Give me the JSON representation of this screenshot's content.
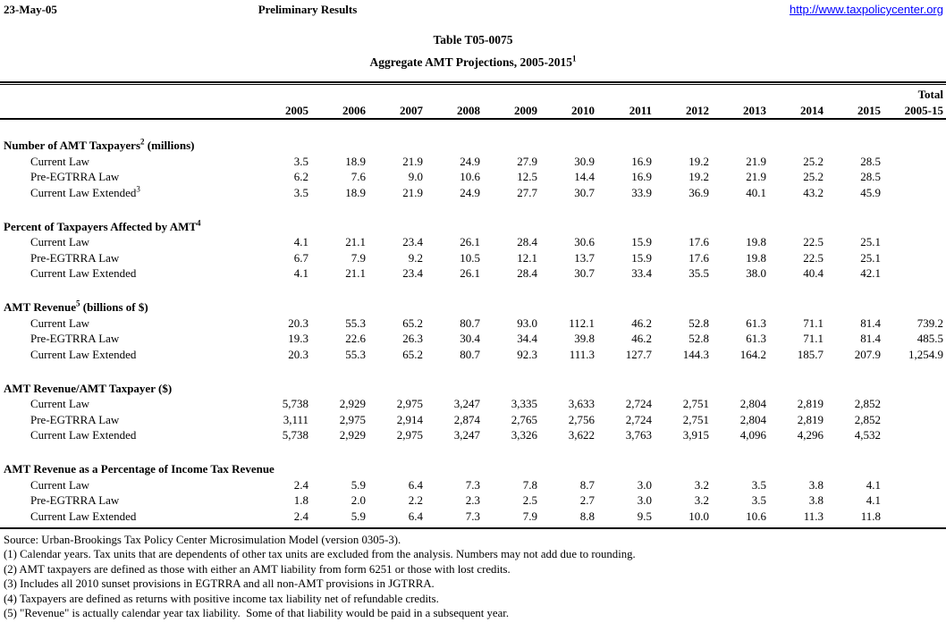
{
  "page_header": {
    "date": "23-May-05",
    "status": "Preliminary Results",
    "link": "http://www.taxpolicycenter.org",
    "link_color": "#0000ff"
  },
  "title": "Table T05-0075",
  "subtitle": {
    "text": "Aggregate AMT Projections, 2005-2015",
    "sup": "1"
  },
  "table": {
    "years": [
      "2005",
      "2006",
      "2007",
      "2008",
      "2009",
      "2010",
      "2011",
      "2012",
      "2013",
      "2014",
      "2015"
    ],
    "total_header": {
      "line1": "Total",
      "line2": "2005-15"
    },
    "sections": [
      {
        "title": "Number of AMT Taxpayers",
        "sup": "2",
        "suffix": " (millions)",
        "rows": [
          {
            "label": "Current Law",
            "sup": "",
            "values": [
              "3.5",
              "18.9",
              "21.9",
              "24.9",
              "27.9",
              "30.9",
              "16.9",
              "19.2",
              "21.9",
              "25.2",
              "28.5"
            ],
            "total": ""
          },
          {
            "label": "Pre-EGTRRA Law",
            "sup": "",
            "values": [
              "6.2",
              "7.6",
              "9.0",
              "10.6",
              "12.5",
              "14.4",
              "16.9",
              "19.2",
              "21.9",
              "25.2",
              "28.5"
            ],
            "total": ""
          },
          {
            "label": "Current Law Extended",
            "sup": "3",
            "values": [
              "3.5",
              "18.9",
              "21.9",
              "24.9",
              "27.7",
              "30.7",
              "33.9",
              "36.9",
              "40.1",
              "43.2",
              "45.9"
            ],
            "total": ""
          }
        ]
      },
      {
        "title": "Percent of Taxpayers Affected by AMT",
        "sup": "4",
        "suffix": "",
        "rows": [
          {
            "label": "Current Law",
            "sup": "",
            "values": [
              "4.1",
              "21.1",
              "23.4",
              "26.1",
              "28.4",
              "30.6",
              "15.9",
              "17.6",
              "19.8",
              "22.5",
              "25.1"
            ],
            "total": ""
          },
          {
            "label": "Pre-EGTRRA Law",
            "sup": "",
            "values": [
              "6.7",
              "7.9",
              "9.2",
              "10.5",
              "12.1",
              "13.7",
              "15.9",
              "17.6",
              "19.8",
              "22.5",
              "25.1"
            ],
            "total": ""
          },
          {
            "label": "Current Law Extended",
            "sup": "",
            "values": [
              "4.1",
              "21.1",
              "23.4",
              "26.1",
              "28.4",
              "30.7",
              "33.4",
              "35.5",
              "38.0",
              "40.4",
              "42.1"
            ],
            "total": ""
          }
        ]
      },
      {
        "title": "AMT Revenue",
        "sup": "5",
        "suffix": " (billions of $)",
        "rows": [
          {
            "label": "Current Law",
            "sup": "",
            "values": [
              "20.3",
              "55.3",
              "65.2",
              "80.7",
              "93.0",
              "112.1",
              "46.2",
              "52.8",
              "61.3",
              "71.1",
              "81.4"
            ],
            "total": "739.2"
          },
          {
            "label": "Pre-EGTRRA Law",
            "sup": "",
            "values": [
              "19.3",
              "22.6",
              "26.3",
              "30.4",
              "34.4",
              "39.8",
              "46.2",
              "52.8",
              "61.3",
              "71.1",
              "81.4"
            ],
            "total": "485.5"
          },
          {
            "label": "Current Law Extended",
            "sup": "",
            "values": [
              "20.3",
              "55.3",
              "65.2",
              "80.7",
              "92.3",
              "111.3",
              "127.7",
              "144.3",
              "164.2",
              "185.7",
              "207.9"
            ],
            "total": "1,254.9"
          }
        ]
      },
      {
        "title": "AMT Revenue/AMT Taxpayer ($)",
        "sup": "",
        "suffix": "",
        "rows": [
          {
            "label": "Current Law",
            "sup": "",
            "values": [
              "5,738",
              "2,929",
              "2,975",
              "3,247",
              "3,335",
              "3,633",
              "2,724",
              "2,751",
              "2,804",
              "2,819",
              "2,852"
            ],
            "total": ""
          },
          {
            "label": "Pre-EGTRRA Law",
            "sup": "",
            "values": [
              "3,111",
              "2,975",
              "2,914",
              "2,874",
              "2,765",
              "2,756",
              "2,724",
              "2,751",
              "2,804",
              "2,819",
              "2,852"
            ],
            "total": ""
          },
          {
            "label": "Current Law Extended",
            "sup": "",
            "values": [
              "5,738",
              "2,929",
              "2,975",
              "3,247",
              "3,326",
              "3,622",
              "3,763",
              "3,915",
              "4,096",
              "4,296",
              "4,532"
            ],
            "total": ""
          }
        ]
      },
      {
        "title": "AMT Revenue as a Percentage of Income Tax Revenue",
        "sup": "",
        "suffix": "",
        "rows": [
          {
            "label": "Current Law",
            "sup": "",
            "values": [
              "2.4",
              "5.9",
              "6.4",
              "7.3",
              "7.8",
              "8.7",
              "3.0",
              "3.2",
              "3.5",
              "3.8",
              "4.1"
            ],
            "total": ""
          },
          {
            "label": "Pre-EGTRRA Law",
            "sup": "",
            "values": [
              "1.8",
              "2.0",
              "2.2",
              "2.3",
              "2.5",
              "2.7",
              "3.0",
              "3.2",
              "3.5",
              "3.8",
              "4.1"
            ],
            "total": ""
          },
          {
            "label": "Current Law Extended",
            "sup": "",
            "values": [
              "2.4",
              "5.9",
              "6.4",
              "7.3",
              "7.9",
              "8.8",
              "9.5",
              "10.0",
              "10.6",
              "11.3",
              "11.8"
            ],
            "total": ""
          }
        ]
      }
    ]
  },
  "footnotes": [
    "Source: Urban-Brookings Tax Policy Center Microsimulation Model (version 0305-3).",
    "(1) Calendar years. Tax units that are dependents of other tax units are excluded from the analysis. Numbers may not add due to rounding.",
    "(2) AMT taxpayers are defined as those with either an AMT liability from form 6251 or those with lost credits.",
    "(3) Includes all 2010 sunset provisions in EGTRRA and all non-AMT provisions in JGTRRA.",
    "(4) Taxpayers are defined as returns with positive income tax liability net of refundable credits.",
    "(5) \"Revenue\" is actually calendar year tax liability.  Some of that liability would be paid in a subsequent year."
  ]
}
